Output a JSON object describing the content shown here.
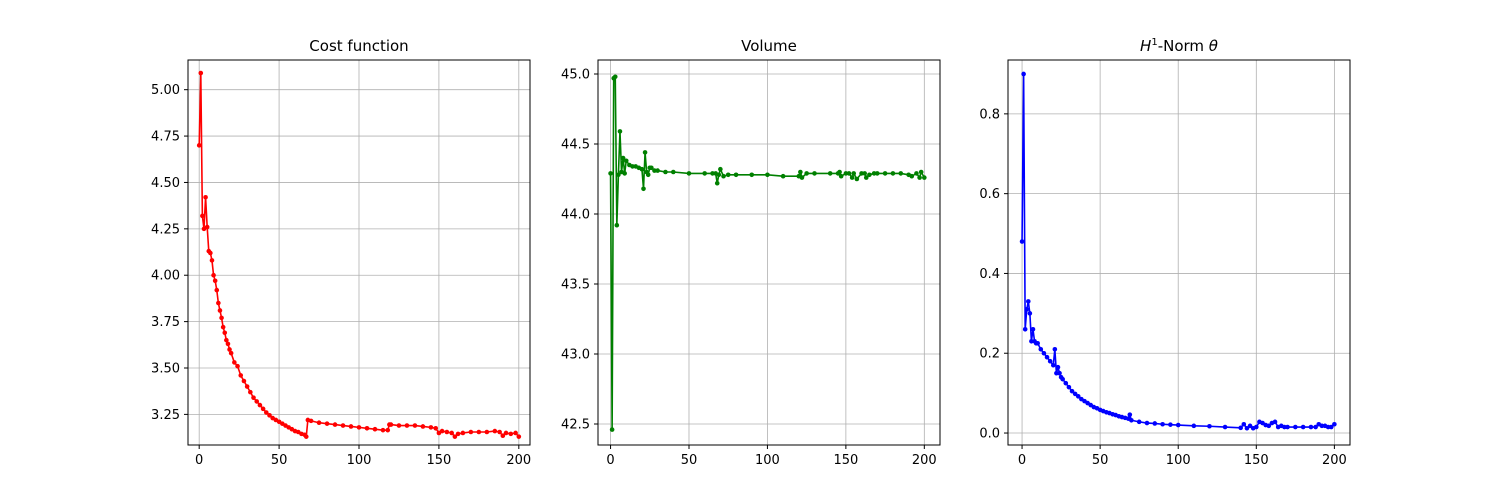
{
  "chart_data": [
    {
      "type": "line",
      "title": "Cost function",
      "xlabel": "",
      "ylabel": "",
      "xlim": [
        -7,
        207
      ],
      "ylim": [
        3.085,
        5.16
      ],
      "xticks": [
        0,
        50,
        100,
        150,
        200
      ],
      "yticks": [
        3.25,
        3.5,
        3.75,
        4.0,
        4.25,
        4.5,
        4.75,
        5.0
      ],
      "ytick_labels": [
        "3.25",
        "3.50",
        "3.75",
        "4.00",
        "4.25",
        "4.50",
        "4.75",
        "5.00"
      ],
      "grid": true,
      "color": "#ff0000",
      "marker": "point",
      "series": [
        {
          "x": [
            0,
            1,
            2,
            3,
            4,
            5,
            6,
            7,
            8,
            9,
            10,
            11,
            12,
            13,
            14,
            15,
            16,
            17,
            18,
            19,
            20,
            22,
            24,
            26,
            28,
            30,
            32,
            34,
            36,
            38,
            40,
            42,
            44,
            46,
            48,
            50,
            52,
            54,
            56,
            58,
            60,
            62,
            64,
            66,
            67,
            68,
            70,
            75,
            80,
            85,
            90,
            95,
            100,
            105,
            110,
            115,
            118,
            119,
            120,
            125,
            130,
            135,
            140,
            145,
            148,
            150,
            152,
            155,
            158,
            160,
            162,
            165,
            170,
            175,
            180,
            185,
            188,
            190,
            192,
            195,
            198,
            200
          ],
          "values": [
            4.7,
            5.09,
            4.32,
            4.25,
            4.42,
            4.26,
            4.13,
            4.12,
            4.08,
            4.0,
            3.97,
            3.92,
            3.85,
            3.81,
            3.77,
            3.72,
            3.69,
            3.65,
            3.63,
            3.6,
            3.58,
            3.53,
            3.51,
            3.46,
            3.43,
            3.4,
            3.37,
            3.34,
            3.32,
            3.3,
            3.28,
            3.26,
            3.245,
            3.23,
            3.22,
            3.21,
            3.2,
            3.19,
            3.18,
            3.17,
            3.16,
            3.155,
            3.145,
            3.14,
            3.13,
            3.22,
            3.215,
            3.205,
            3.2,
            3.195,
            3.19,
            3.185,
            3.18,
            3.175,
            3.17,
            3.165,
            3.165,
            3.195,
            3.195,
            3.19,
            3.19,
            3.19,
            3.185,
            3.18,
            3.175,
            3.15,
            3.16,
            3.155,
            3.15,
            3.13,
            3.145,
            3.15,
            3.155,
            3.155,
            3.155,
            3.16,
            3.155,
            3.135,
            3.15,
            3.145,
            3.15,
            3.13
          ]
        }
      ]
    },
    {
      "type": "line",
      "title": "Volume",
      "xlabel": "",
      "ylabel": "",
      "xlim": [
        -8,
        210
      ],
      "ylim": [
        42.35,
        45.1
      ],
      "xticks": [
        0,
        50,
        100,
        150,
        200
      ],
      "yticks": [
        42.5,
        43.0,
        43.5,
        44.0,
        44.5,
        45.0
      ],
      "ytick_labels": [
        "42.5",
        "43.0",
        "43.5",
        "44.0",
        "44.5",
        "45.0"
      ],
      "grid": true,
      "color": "#008000",
      "marker": "point",
      "series": [
        {
          "x": [
            0,
            1,
            2,
            3,
            4,
            5,
            6,
            7,
            8,
            9,
            10,
            12,
            14,
            16,
            18,
            20,
            21,
            22,
            23,
            24,
            25,
            26,
            28,
            30,
            35,
            40,
            50,
            60,
            65,
            67,
            68,
            69,
            70,
            72,
            75,
            80,
            90,
            100,
            110,
            120,
            121,
            122,
            125,
            130,
            140,
            145,
            146,
            147,
            150,
            152,
            154,
            155,
            157,
            160,
            162,
            163,
            165,
            168,
            170,
            175,
            180,
            185,
            190,
            192,
            195,
            197,
            198,
            200
          ],
          "values": [
            44.29,
            42.46,
            44.97,
            44.98,
            43.92,
            44.28,
            44.59,
            44.3,
            44.4,
            44.29,
            44.38,
            44.35,
            44.34,
            44.34,
            44.33,
            44.32,
            44.18,
            44.44,
            44.3,
            44.28,
            44.33,
            44.33,
            44.31,
            44.31,
            44.3,
            44.3,
            44.29,
            44.29,
            44.29,
            44.29,
            44.22,
            44.28,
            44.32,
            44.27,
            44.28,
            44.28,
            44.28,
            44.28,
            44.27,
            44.27,
            44.3,
            44.26,
            44.29,
            44.29,
            44.29,
            44.29,
            44.3,
            44.27,
            44.29,
            44.29,
            44.26,
            44.29,
            44.25,
            44.29,
            44.29,
            44.26,
            44.28,
            44.29,
            44.29,
            44.29,
            44.29,
            44.29,
            44.28,
            44.27,
            44.29,
            44.26,
            44.3,
            44.26
          ]
        }
      ]
    },
    {
      "type": "line",
      "title": "H1-Norm θ",
      "xlabel": "",
      "ylabel": "",
      "xlim": [
        -9,
        210
      ],
      "ylim": [
        -0.03,
        0.935
      ],
      "xticks": [
        0,
        50,
        100,
        150,
        200
      ],
      "yticks": [
        0.0,
        0.2,
        0.4,
        0.6,
        0.8
      ],
      "ytick_labels": [
        "0.0",
        "0.2",
        "0.4",
        "0.6",
        "0.8"
      ],
      "grid": true,
      "color": "#0000ff",
      "marker": "point",
      "series": [
        {
          "x": [
            0,
            1,
            2,
            3,
            4,
            5,
            6,
            7,
            8,
            9,
            10,
            12,
            14,
            16,
            18,
            20,
            21,
            22,
            23,
            24,
            25,
            26,
            28,
            30,
            32,
            34,
            36,
            38,
            40,
            42,
            44,
            46,
            48,
            50,
            52,
            54,
            56,
            58,
            60,
            62,
            64,
            66,
            68,
            69,
            70,
            75,
            80,
            85,
            90,
            95,
            100,
            110,
            120,
            130,
            140,
            142,
            144,
            146,
            148,
            150,
            152,
            154,
            156,
            158,
            160,
            162,
            164,
            166,
            168,
            170,
            175,
            180,
            185,
            188,
            190,
            192,
            194,
            196,
            198,
            200
          ],
          "values": [
            0.48,
            0.9,
            0.26,
            0.31,
            0.33,
            0.3,
            0.23,
            0.26,
            0.23,
            0.225,
            0.225,
            0.21,
            0.2,
            0.19,
            0.18,
            0.17,
            0.21,
            0.15,
            0.165,
            0.15,
            0.14,
            0.135,
            0.125,
            0.115,
            0.105,
            0.098,
            0.092,
            0.085,
            0.08,
            0.075,
            0.07,
            0.065,
            0.062,
            0.058,
            0.055,
            0.052,
            0.05,
            0.047,
            0.045,
            0.042,
            0.04,
            0.038,
            0.036,
            0.046,
            0.032,
            0.028,
            0.025,
            0.024,
            0.022,
            0.021,
            0.02,
            0.018,
            0.017,
            0.015,
            0.013,
            0.022,
            0.012,
            0.018,
            0.012,
            0.015,
            0.028,
            0.025,
            0.02,
            0.018,
            0.025,
            0.028,
            0.015,
            0.018,
            0.015,
            0.015,
            0.015,
            0.015,
            0.015,
            0.015,
            0.022,
            0.018,
            0.018,
            0.015,
            0.015,
            0.022
          ]
        }
      ]
    }
  ]
}
